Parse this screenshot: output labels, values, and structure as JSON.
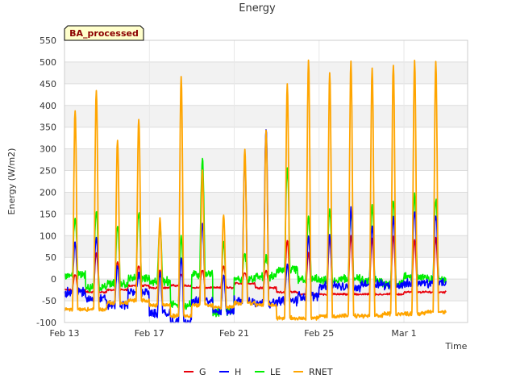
{
  "chart_data": {
    "type": "line",
    "title": "Energy",
    "xlabel": "Time",
    "ylabel": "Energy (W/m2)",
    "badge": "BA_processed",
    "ylim": [
      -100,
      550
    ],
    "xlim": [
      "2023-02-13",
      "2023-03-04"
    ],
    "x_ticks": [
      {
        "date": "2023-02-13",
        "label": "Feb 13"
      },
      {
        "date": "2023-02-17",
        "label": "Feb 17"
      },
      {
        "date": "2023-02-21",
        "label": "Feb 21"
      },
      {
        "date": "2023-02-25",
        "label": "Feb 25"
      },
      {
        "date": "2023-03-01",
        "label": "Mar 1"
      }
    ],
    "y_ticks": [
      -100,
      -50,
      0,
      50,
      100,
      150,
      200,
      250,
      300,
      350,
      400,
      450,
      500,
      550
    ],
    "grid": true,
    "legend_position": "bottom",
    "start_date": "2023-02-13",
    "series_days": [
      0.3,
      1.3,
      2.3,
      3.3,
      4.3,
      5.3,
      6.3,
      7.3,
      8.3,
      9.3,
      10.3,
      11.3,
      12.3,
      13.3,
      14.3,
      15.3,
      16.3,
      17.3
    ],
    "series": [
      {
        "name": "G",
        "color": "#e8000b",
        "peaks": [
          10,
          60,
          40,
          30,
          20,
          10,
          20,
          30,
          15,
          20,
          90,
          60,
          95,
          100,
          95,
          100,
          90,
          95
        ],
        "troughs": [
          -25,
          -30,
          -25,
          -15,
          -20,
          -15,
          -20,
          -20,
          -10,
          -20,
          -30,
          -35,
          -35,
          -35,
          -35,
          -35,
          -30,
          -30
        ]
      },
      {
        "name": "H",
        "color": "#0000ff",
        "peaks": [
          85,
          100,
          30,
          10,
          15,
          50,
          130,
          10,
          275,
          350,
          30,
          100,
          100,
          160,
          120,
          140,
          160,
          150
        ],
        "troughs": [
          -30,
          -45,
          -60,
          -30,
          -80,
          -100,
          -50,
          -75,
          -50,
          -55,
          -50,
          -40,
          -15,
          -20,
          -10,
          -15,
          -10,
          -10
        ]
      },
      {
        "name": "LE",
        "color": "#00ee00",
        "peaks": [
          145,
          160,
          120,
          155,
          120,
          100,
          280,
          90,
          55,
          50,
          250,
          140,
          160,
          155,
          165,
          185,
          195,
          185
        ],
        "troughs": [
          10,
          -20,
          -10,
          0,
          -5,
          -60,
          10,
          -75,
          0,
          5,
          20,
          0,
          -5,
          0,
          -5,
          -10,
          5,
          0
        ]
      },
      {
        "name": "RNET",
        "color": "#ffa500",
        "peaks": [
          390,
          435,
          320,
          370,
          140,
          465,
          250,
          150,
          300,
          340,
          450,
          505,
          475,
          500,
          485,
          495,
          505,
          500
        ],
        "troughs": [
          -70,
          -70,
          -55,
          -50,
          -60,
          -85,
          -60,
          -65,
          -55,
          -60,
          -90,
          -90,
          -85,
          -85,
          -85,
          -80,
          -80,
          -75
        ]
      }
    ]
  }
}
